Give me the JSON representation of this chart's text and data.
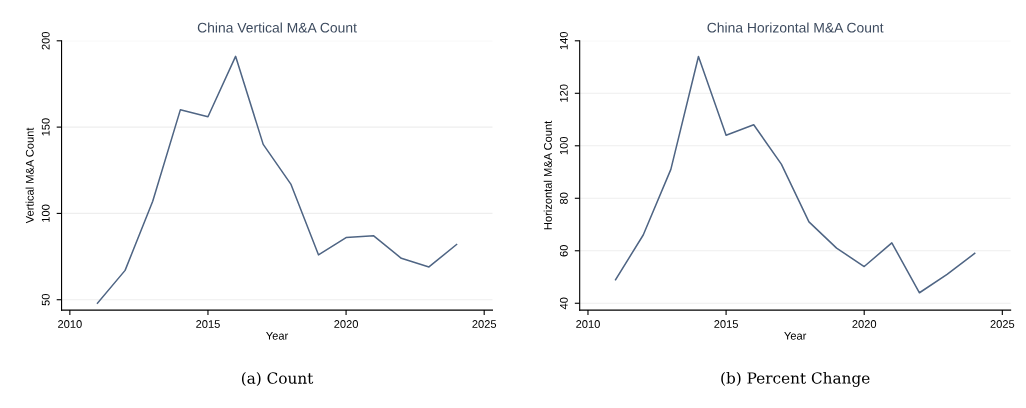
{
  "chart_data": [
    {
      "type": "line",
      "title": "China Vertical M&A Count",
      "xlabel": "Year",
      "ylabel": "Vertical M&A Count",
      "x": [
        2011,
        2012,
        2013,
        2014,
        2015,
        2016,
        2017,
        2018,
        2019,
        2020,
        2021,
        2022,
        2023,
        2024
      ],
      "series": [
        {
          "color": "#4f6584",
          "values": [
            48,
            67,
            107,
            160,
            156,
            191,
            140,
            117,
            76,
            86,
            87,
            74,
            69,
            82
          ]
        }
      ],
      "xlim": [
        2009.7,
        2025.3
      ],
      "xticks": [
        2010,
        2015,
        2020,
        2025
      ],
      "ylim": [
        44,
        200
      ],
      "yticks": [
        50,
        100,
        150,
        200
      ],
      "grid": "y",
      "annotations": [
        "(a) Count"
      ]
    },
    {
      "type": "line",
      "title": "China Horizontal M&A Count",
      "xlabel": "Year",
      "ylabel": "Horizontal M&A Count",
      "x": [
        2011,
        2012,
        2013,
        2014,
        2015,
        2016,
        2017,
        2018,
        2019,
        2020,
        2021,
        2022,
        2023,
        2024
      ],
      "series": [
        {
          "color": "#4f6584",
          "values": [
            49,
            66,
            91,
            134,
            104,
            108,
            93,
            71,
            61,
            54,
            63,
            44,
            51,
            59
          ]
        }
      ],
      "xlim": [
        2009.7,
        2025.3
      ],
      "xticks": [
        2010,
        2015,
        2020,
        2025
      ],
      "ylim": [
        37.4,
        140
      ],
      "yticks": [
        40,
        60,
        80,
        100,
        120,
        140
      ],
      "grid": "y",
      "annotations": [
        "(b) Percent Change"
      ]
    }
  ]
}
